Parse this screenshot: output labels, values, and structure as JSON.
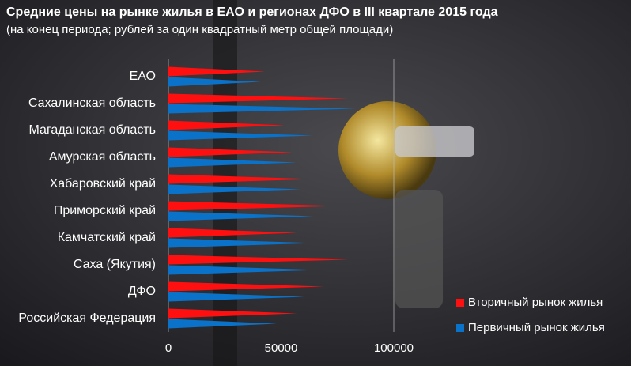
{
  "chart_data": {
    "type": "bar",
    "orientation": "horizontal",
    "title": "Средние цены на рынке жилья в ЕАО и регионах ДФО в III квартале 2015 года",
    "subtitle": "(на конец периода; рублей за один квадратный метр общей площади)",
    "categories": [
      "ЕАО",
      "Сахалинская область",
      "Магаданская область",
      "Амурская область",
      "Хабаровский край",
      "Приморский край",
      "Камчатский край",
      "Саха (Якутия)",
      "ДФО",
      "Российская Федерация"
    ],
    "series": [
      {
        "name": "Вторичный рынок жилья",
        "color": "#ff1010",
        "values": [
          42800,
          79600,
          51500,
          55000,
          64000,
          76000,
          57000,
          79600,
          69000,
          57000
        ]
      },
      {
        "name": "Первичный рынок жилья",
        "color": "#0a72c8",
        "values": [
          41000,
          83000,
          64000,
          57000,
          58500,
          64000,
          65500,
          67400,
          60400,
          48000
        ]
      }
    ],
    "xlim": [
      0,
      100000
    ],
    "xticks": [
      0,
      50000,
      100000
    ],
    "grid": true,
    "legend": "bottom-right"
  }
}
